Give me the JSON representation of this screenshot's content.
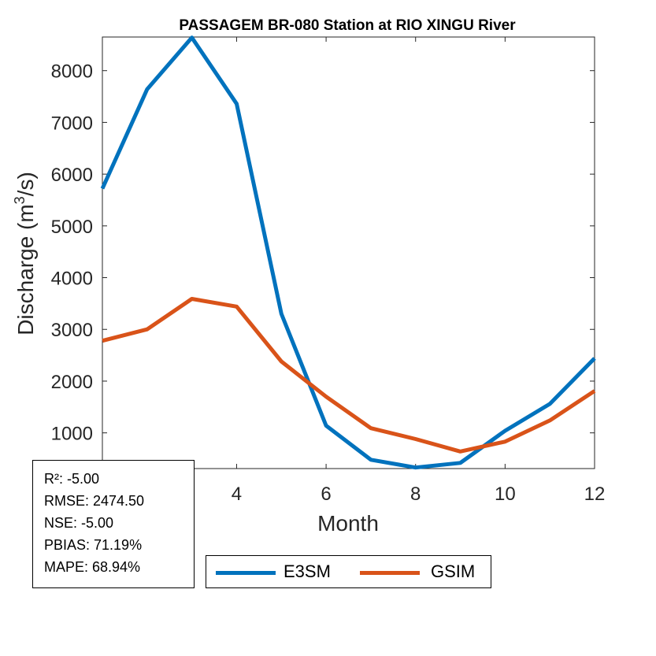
{
  "chart_data": {
    "type": "line",
    "title": "PASSAGEM BR-080  Station at  RIO XINGU  River",
    "xlabel": "Month",
    "ylabel_main": "Discharge (m",
    "ylabel_sup": "3",
    "ylabel_end": "/s)",
    "xlim": [
      1,
      12
    ],
    "ylim": [
      310,
      8650
    ],
    "xticks": [
      4,
      6,
      8,
      10,
      12
    ],
    "yticks": [
      1000,
      2000,
      3000,
      4000,
      5000,
      6000,
      7000,
      8000
    ],
    "x": [
      1,
      2,
      3,
      4,
      5,
      6,
      7,
      8,
      9,
      10,
      11,
      12
    ],
    "series": [
      {
        "name": "E3SM",
        "color": "#0072BD",
        "values": [
          5720,
          7640,
          8640,
          7360,
          3300,
          1140,
          480,
          330,
          420,
          1040,
          1560,
          2440
        ]
      },
      {
        "name": "GSIM",
        "color": "#D95319",
        "values": [
          2780,
          3000,
          3590,
          3440,
          2380,
          1700,
          1090,
          880,
          640,
          830,
          1240,
          1810
        ]
      }
    ],
    "legend_position": "bottom-outside",
    "grid": false
  },
  "stats": {
    "lines": [
      "R²: -5.00",
      "RMSE: 2474.50",
      "NSE: -5.00",
      "PBIAS: 71.19%",
      "MAPE: 68.94%"
    ]
  }
}
